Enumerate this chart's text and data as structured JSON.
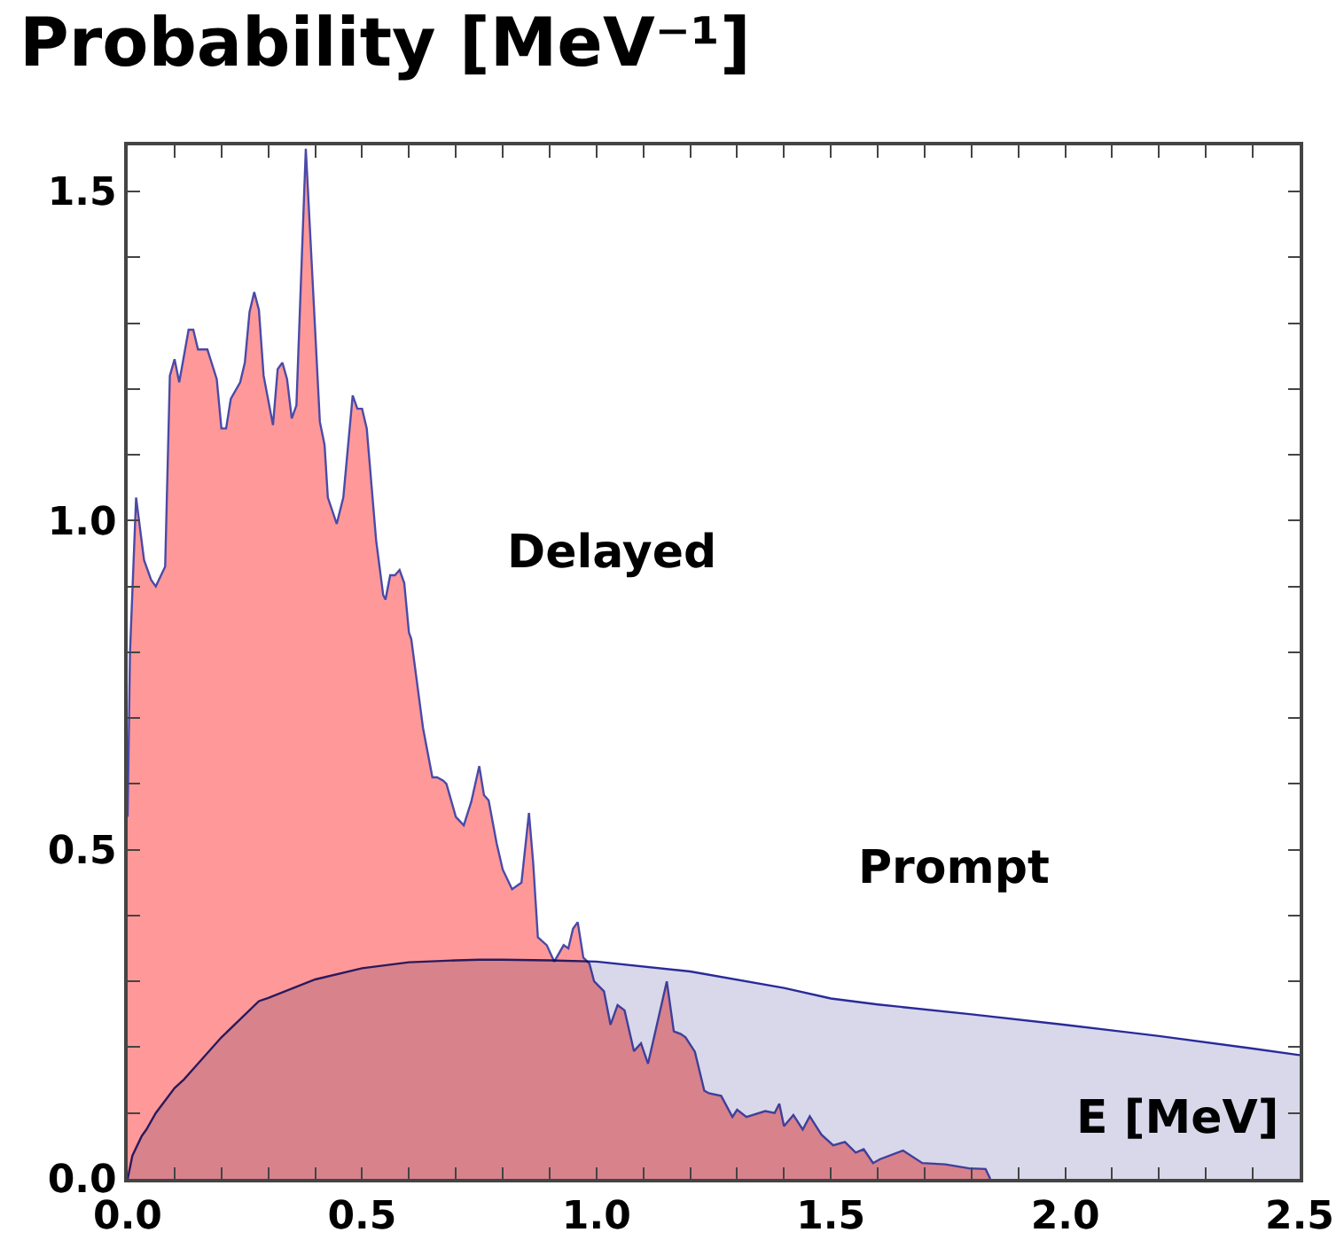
{
  "chart_data": {
    "type": "area",
    "ylabel": "Probability [MeV⁻¹]",
    "xlabel": "E [MeV]",
    "xlim": [
      0,
      2.5
    ],
    "ylim": [
      0,
      1.57
    ],
    "xticks": [
      {
        "value": 0,
        "label": "0.0"
      },
      {
        "value": 0.1,
        "label": null
      },
      {
        "value": 0.2,
        "label": null
      },
      {
        "value": 0.3,
        "label": null
      },
      {
        "value": 0.4,
        "label": null
      },
      {
        "value": 0.5,
        "label": "0.5"
      },
      {
        "value": 0.6,
        "label": null
      },
      {
        "value": 0.7,
        "label": null
      },
      {
        "value": 0.8,
        "label": null
      },
      {
        "value": 0.9,
        "label": null
      },
      {
        "value": 1,
        "label": "1.0"
      },
      {
        "value": 1.1,
        "label": null
      },
      {
        "value": 1.2,
        "label": null
      },
      {
        "value": 1.3,
        "label": null
      },
      {
        "value": 1.4,
        "label": null
      },
      {
        "value": 1.5,
        "label": "1.5"
      },
      {
        "value": 1.6,
        "label": null
      },
      {
        "value": 1.7,
        "label": null
      },
      {
        "value": 1.8,
        "label": null
      },
      {
        "value": 1.9,
        "label": null
      },
      {
        "value": 2,
        "label": "2.0"
      },
      {
        "value": 2.1,
        "label": null
      },
      {
        "value": 2.2,
        "label": null
      },
      {
        "value": 2.3,
        "label": null
      },
      {
        "value": 2.4,
        "label": null
      },
      {
        "value": 2.5,
        "label": "2.5"
      }
    ],
    "yticks": [
      {
        "value": 0,
        "label": "0.0"
      },
      {
        "value": 0.1,
        "label": null
      },
      {
        "value": 0.2,
        "label": null
      },
      {
        "value": 0.3,
        "label": null
      },
      {
        "value": 0.4,
        "label": null
      },
      {
        "value": 0.5,
        "label": "0.5"
      },
      {
        "value": 0.6,
        "label": null
      },
      {
        "value": 0.7,
        "label": null
      },
      {
        "value": 0.8,
        "label": null
      },
      {
        "value": 0.9,
        "label": null
      },
      {
        "value": 1,
        "label": "1.0"
      },
      {
        "value": 1.1,
        "label": null
      },
      {
        "value": 1.2,
        "label": null
      },
      {
        "value": 1.3,
        "label": null
      },
      {
        "value": 1.4,
        "label": null
      },
      {
        "value": 1.5,
        "label": "1.5"
      }
    ],
    "grid": false,
    "legend": false,
    "series": [
      {
        "name": "Delayed",
        "color": "#ff9999",
        "x": [
          0,
          0.005,
          0.018,
          0.035,
          0.05,
          0.06,
          0.08,
          0.09,
          0.1,
          0.11,
          0.13,
          0.14,
          0.15,
          0.17,
          0.19,
          0.2,
          0.21,
          0.22,
          0.24,
          0.25,
          0.26,
          0.27,
          0.28,
          0.29,
          0.31,
          0.32,
          0.33,
          0.34,
          0.35,
          0.36,
          0.38,
          0.41,
          0.42,
          0.427,
          0.446,
          0.46,
          0.48,
          0.49,
          0.5,
          0.51,
          0.53,
          0.545,
          0.55,
          0.56,
          0.57,
          0.58,
          0.59,
          0.6,
          0.605,
          0.63,
          0.65,
          0.66,
          0.673,
          0.68,
          0.7,
          0.717,
          0.733,
          0.75,
          0.76,
          0.77,
          0.787,
          0.8,
          0.82,
          0.84,
          0.856,
          0.865,
          0.875,
          0.894,
          0.91,
          0.93,
          0.94,
          0.95,
          0.96,
          0.972,
          0.985,
          0.995,
          1.016,
          1.03,
          1.045,
          1.06,
          1.08,
          1.095,
          1.11,
          1.15,
          1.165,
          1.18,
          1.19,
          1.21,
          1.23,
          1.24,
          1.266,
          1.29,
          1.3,
          1.32,
          1.36,
          1.38,
          1.39,
          1.4,
          1.42,
          1.44,
          1.455,
          1.48,
          1.505,
          1.53,
          1.553,
          1.57,
          1.59,
          1.605,
          1.654,
          1.695,
          1.744,
          1.795,
          1.83,
          1.84
        ],
        "values": [
          0.55,
          0.8,
          1.035,
          0.94,
          0.91,
          0.9,
          0.93,
          1.22,
          1.245,
          1.21,
          1.29,
          1.29,
          1.26,
          1.26,
          1.215,
          1.14,
          1.14,
          1.185,
          1.21,
          1.24,
          1.317,
          1.347,
          1.32,
          1.22,
          1.145,
          1.23,
          1.24,
          1.215,
          1.155,
          1.175,
          1.565,
          1.15,
          1.115,
          1.035,
          0.995,
          1.035,
          1.19,
          1.17,
          1.17,
          1.14,
          0.97,
          0.887,
          0.88,
          0.917,
          0.917,
          0.925,
          0.905,
          0.83,
          0.82,
          0.685,
          0.61,
          0.61,
          0.605,
          0.6,
          0.55,
          0.537,
          0.573,
          0.627,
          0.583,
          0.575,
          0.51,
          0.47,
          0.44,
          0.45,
          0.556,
          0.48,
          0.367,
          0.355,
          0.33,
          0.355,
          0.35,
          0.38,
          0.39,
          0.336,
          0.327,
          0.3,
          0.285,
          0.234,
          0.264,
          0.256,
          0.194,
          0.206,
          0.175,
          0.3,
          0.224,
          0.22,
          0.215,
          0.193,
          0.134,
          0.13,
          0.126,
          0.094,
          0.105,
          0.094,
          0.103,
          0.1,
          0.114,
          0.08,
          0.097,
          0.075,
          0.095,
          0.067,
          0.051,
          0.056,
          0.04,
          0.045,
          0.024,
          0.03,
          0.043,
          0.024,
          0.022,
          0.016,
          0.015,
          0
        ]
      },
      {
        "name": "Prompt",
        "color": "#d8d8ea",
        "x": [
          0,
          0.01,
          0.03,
          0.04,
          0.06,
          0.1,
          0.12,
          0.15,
          0.2,
          0.28,
          0.3,
          0.4,
          0.5,
          0.6,
          0.7,
          0.75,
          0.8,
          0.9,
          1.0,
          1.2,
          1.4,
          1.5,
          1.6,
          1.8,
          2.0,
          2.2,
          2.4,
          2.5
        ],
        "values": [
          0,
          0.035,
          0.065,
          0.075,
          0.1,
          0.138,
          0.151,
          0.175,
          0.215,
          0.27,
          0.275,
          0.303,
          0.32,
          0.329,
          0.332,
          0.333,
          0.333,
          0.332,
          0.33,
          0.315,
          0.29,
          0.274,
          0.265,
          0.25,
          0.234,
          0.217,
          0.198,
          0.188
        ]
      }
    ]
  }
}
